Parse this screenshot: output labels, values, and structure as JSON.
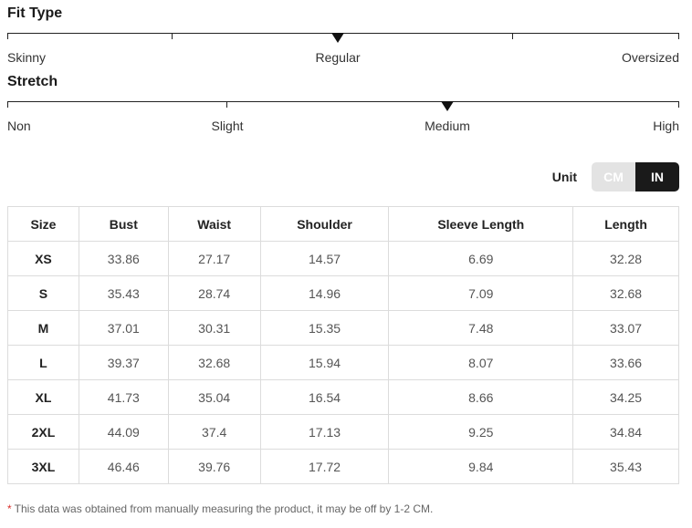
{
  "fit_type": {
    "title": "Fit Type",
    "labels": [
      "Skinny",
      "Regular",
      "Oversized"
    ],
    "selected": "Regular"
  },
  "stretch": {
    "title": "Stretch",
    "labels": [
      "Non",
      "Slight",
      "Medium",
      "High"
    ],
    "selected": "Medium"
  },
  "unit": {
    "label": "Unit",
    "options": [
      "CM",
      "IN"
    ],
    "selected": "IN"
  },
  "table": {
    "headers": [
      "Size",
      "Bust",
      "Waist",
      "Shoulder",
      "Sleeve Length",
      "Length"
    ],
    "rows": [
      [
        "XS",
        "33.86",
        "27.17",
        "14.57",
        "6.69",
        "32.28"
      ],
      [
        "S",
        "35.43",
        "28.74",
        "14.96",
        "7.09",
        "32.68"
      ],
      [
        "M",
        "37.01",
        "30.31",
        "15.35",
        "7.48",
        "33.07"
      ],
      [
        "L",
        "39.37",
        "32.68",
        "15.94",
        "8.07",
        "33.66"
      ],
      [
        "XL",
        "41.73",
        "35.04",
        "16.54",
        "8.66",
        "34.25"
      ],
      [
        "2XL",
        "44.09",
        "37.4",
        "17.13",
        "9.25",
        "34.84"
      ],
      [
        "3XL",
        "46.46",
        "39.76",
        "17.72",
        "9.84",
        "35.43"
      ]
    ]
  },
  "footnote": {
    "star": "*",
    "text": "This data was obtained from manually measuring the product, it may be off by 1-2 CM."
  },
  "colors": {
    "active_unit_bg": "#1a1a1a",
    "inactive_unit_bg": "#e3e3e3",
    "footnote_star": "#d9302b"
  }
}
